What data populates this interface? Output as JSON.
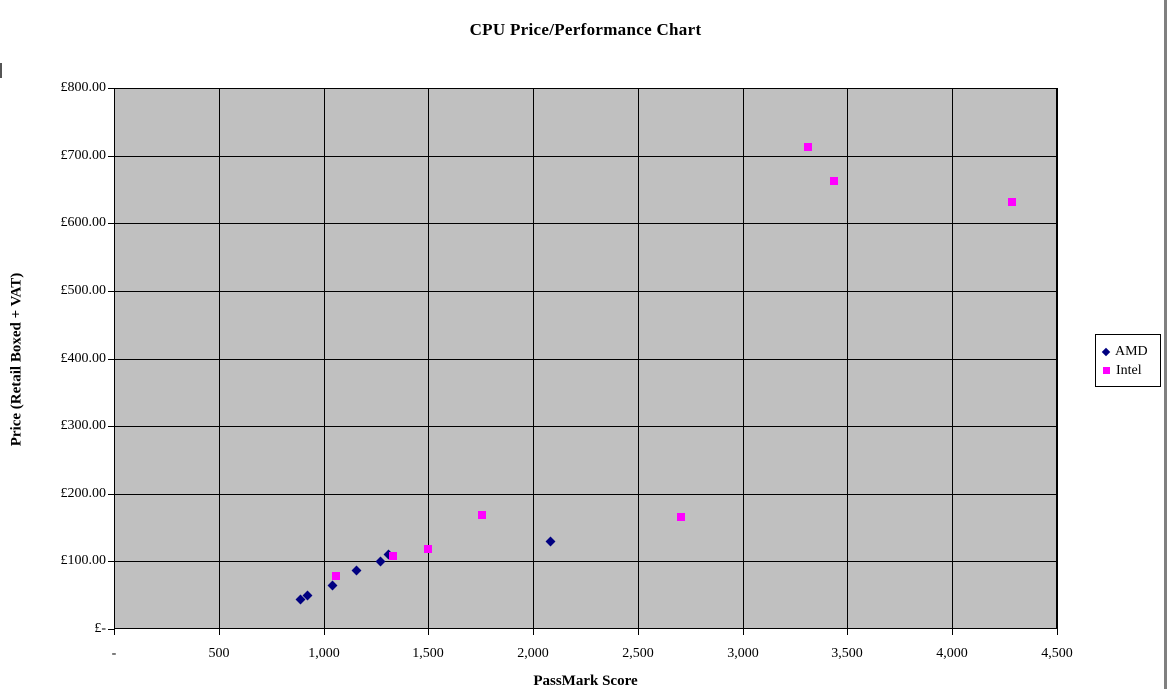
{
  "window": {
    "right_edge_color": "#808080"
  },
  "chart_data": {
    "type": "scatter",
    "title": "CPU Price/Performance Chart",
    "xlabel": "PassMark Score",
    "ylabel": "Price (Retail Boxed + VAT)",
    "xlim": [
      0,
      4500
    ],
    "ylim": [
      0,
      800
    ],
    "x_tick_step": 500,
    "y_tick_step": 100,
    "x_tick_labels": [
      "-",
      "500",
      "1,000",
      "1,500",
      "2,000",
      "2,500",
      "3,000",
      "3,500",
      "4,000",
      "4,500"
    ],
    "y_tick_labels": [
      "£-",
      "£100.00",
      "£200.00",
      "£300.00",
      "£400.00",
      "£500.00",
      "£600.00",
      "£700.00",
      "£800.00"
    ],
    "grid": true,
    "plot_bg_color": "#c0c0c0",
    "gridline_color": "#000000",
    "legend_position": "right",
    "series": [
      {
        "name": "AMD",
        "marker": "diamond",
        "color": "#000080",
        "points": [
          [
            890,
            43
          ],
          [
            925,
            50
          ],
          [
            1045,
            65
          ],
          [
            1155,
            87
          ],
          [
            1270,
            100
          ],
          [
            1310,
            110
          ],
          [
            2085,
            130
          ]
        ]
      },
      {
        "name": "Intel",
        "marker": "square",
        "color": "#ff00ff",
        "points": [
          [
            1060,
            78
          ],
          [
            1330,
            108
          ],
          [
            1500,
            118
          ],
          [
            1755,
            168
          ],
          [
            2705,
            166
          ],
          [
            3310,
            713
          ],
          [
            3435,
            662
          ],
          [
            4285,
            632
          ]
        ]
      }
    ]
  }
}
